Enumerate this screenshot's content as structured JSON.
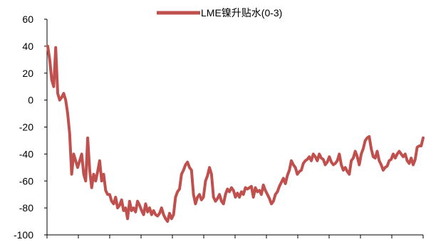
{
  "chart_data": {
    "type": "line",
    "title": "",
    "xlabel": "",
    "ylabel": "",
    "ylim": [
      -100,
      60
    ],
    "yticks": [
      60,
      40,
      20,
      0,
      -20,
      -40,
      -60,
      -80,
      -100
    ],
    "grid": false,
    "legend_position": "top-center",
    "series": [
      {
        "name": "LME镍升贴水(0-3)",
        "color": "#c0504d",
        "values": [
          40,
          30,
          15,
          10,
          39,
          5,
          0,
          2,
          5,
          0,
          -10,
          -25,
          -55,
          -40,
          -45,
          -50,
          -45,
          -40,
          -55,
          -60,
          -28,
          -52,
          -65,
          -55,
          -60,
          -53,
          -45,
          -60,
          -55,
          -67,
          -70,
          -70,
          -75,
          -77,
          -72,
          -80,
          -78,
          -74,
          -82,
          -80,
          -88,
          -75,
          -82,
          -80,
          -83,
          -75,
          -78,
          -82,
          -85,
          -77,
          -83,
          -80,
          -85,
          -82,
          -85,
          -86,
          -84,
          -80,
          -85,
          -88,
          -90,
          -84,
          -88,
          -85,
          -72,
          -68,
          -66,
          -55,
          -52,
          -48,
          -46,
          -50,
          -52,
          -70,
          -77,
          -72,
          -70,
          -74,
          -72,
          -60,
          -56,
          -50,
          -55,
          -72,
          -75,
          -73,
          -70,
          -75,
          -77,
          -70,
          -66,
          -68,
          -65,
          -67,
          -72,
          -69,
          -72,
          -68,
          -70,
          -65,
          -66,
          -65,
          -64,
          -72,
          -65,
          -68,
          -67,
          -70,
          -63,
          -67,
          -70,
          -73,
          -77,
          -75,
          -70,
          -68,
          -64,
          -61,
          -58,
          -62,
          -56,
          -52,
          -45,
          -48,
          -50,
          -55,
          -53,
          -52,
          -47,
          -45,
          -44,
          -42,
          -45,
          -40,
          -42,
          -45,
          -40,
          -43,
          -44,
          -48,
          -46,
          -42,
          -46,
          -48,
          -47,
          -45,
          -40,
          -48,
          -52,
          -50,
          -53,
          -55,
          -45,
          -43,
          -38,
          -42,
          -48,
          -40,
          -36,
          -30,
          -28,
          -27,
          -36,
          -42,
          -43,
          -38,
          -45,
          -48,
          -52,
          -50,
          -49,
          -45,
          -44,
          -40,
          -43,
          -40,
          -38,
          -40,
          -42,
          -40,
          -45,
          -47,
          -43,
          -48,
          -44,
          -35,
          -34,
          -34,
          -28
        ]
      }
    ]
  }
}
